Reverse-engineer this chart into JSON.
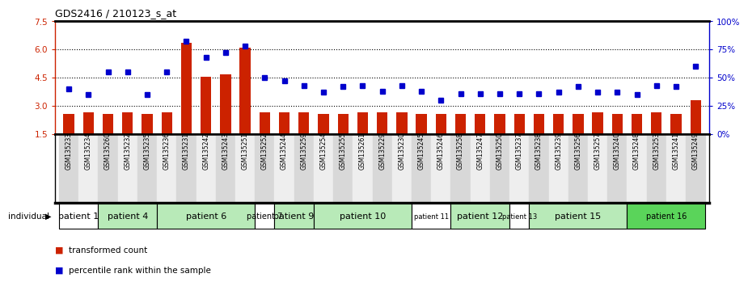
{
  "title": "GDS2416 / 210123_s_at",
  "samples": [
    "GSM135233",
    "GSM135234",
    "GSM135260",
    "GSM135232",
    "GSM135235",
    "GSM135236",
    "GSM135231",
    "GSM135242",
    "GSM135243",
    "GSM135251",
    "GSM135252",
    "GSM135244",
    "GSM135259",
    "GSM135254",
    "GSM135255",
    "GSM135261",
    "GSM135229",
    "GSM135230",
    "GSM135245",
    "GSM135246",
    "GSM135258",
    "GSM135247",
    "GSM135250",
    "GSM135237",
    "GSM135238",
    "GSM135239",
    "GSM135256",
    "GSM135257",
    "GSM135240",
    "GSM135248",
    "GSM135253",
    "GSM135241",
    "GSM135249"
  ],
  "bar_values": [
    2.55,
    2.65,
    2.55,
    2.65,
    2.55,
    2.65,
    6.35,
    4.55,
    4.65,
    6.1,
    2.65,
    2.65,
    2.65,
    2.55,
    2.55,
    2.65,
    2.65,
    2.65,
    2.55,
    2.55,
    2.55,
    2.55,
    2.55,
    2.55,
    2.55,
    2.55,
    2.55,
    2.65,
    2.55,
    2.55,
    2.65,
    2.55,
    3.3
  ],
  "blue_values": [
    40,
    35,
    55,
    55,
    35,
    55,
    82,
    68,
    72,
    78,
    50,
    47,
    43,
    37,
    42,
    43,
    38,
    43,
    38,
    30,
    36,
    36,
    36,
    36,
    36,
    37,
    42,
    37,
    37,
    35,
    43,
    42,
    60
  ],
  "patients": [
    {
      "label": "patient 1",
      "start": 0,
      "end": 2,
      "color": "#ffffff",
      "fontsize": 8
    },
    {
      "label": "patient 4",
      "start": 2,
      "end": 5,
      "color": "#b8eab8",
      "fontsize": 8
    },
    {
      "label": "patient 6",
      "start": 5,
      "end": 10,
      "color": "#b8eab8",
      "fontsize": 8
    },
    {
      "label": "patient 7",
      "start": 10,
      "end": 11,
      "color": "#ffffff",
      "fontsize": 7
    },
    {
      "label": "patient 9",
      "start": 11,
      "end": 13,
      "color": "#b8eab8",
      "fontsize": 8
    },
    {
      "label": "patient 10",
      "start": 13,
      "end": 18,
      "color": "#b8eab8",
      "fontsize": 8
    },
    {
      "label": "patient 11",
      "start": 18,
      "end": 20,
      "color": "#ffffff",
      "fontsize": 6
    },
    {
      "label": "patient 12",
      "start": 20,
      "end": 23,
      "color": "#b8eab8",
      "fontsize": 8
    },
    {
      "label": "patient 13",
      "start": 23,
      "end": 24,
      "color": "#ffffff",
      "fontsize": 6
    },
    {
      "label": "patient 15",
      "start": 24,
      "end": 29,
      "color": "#b8eab8",
      "fontsize": 8
    },
    {
      "label": "patient 16",
      "start": 29,
      "end": 33,
      "color": "#5ad45a",
      "fontsize": 7
    }
  ],
  "ylim_left": [
    1.5,
    7.5
  ],
  "ylim_right": [
    0,
    100
  ],
  "yticks_left": [
    1.5,
    3.0,
    4.5,
    6.0,
    7.5
  ],
  "yticks_right": [
    0,
    25,
    50,
    75,
    100
  ],
  "ytick_labels_right": [
    "0%",
    "25%",
    "50%",
    "75%",
    "100%"
  ],
  "bar_color": "#cc2200",
  "dot_color": "#0000cc",
  "col_bg_odd": "#d8d8d8",
  "col_bg_even": "#eeeeee"
}
